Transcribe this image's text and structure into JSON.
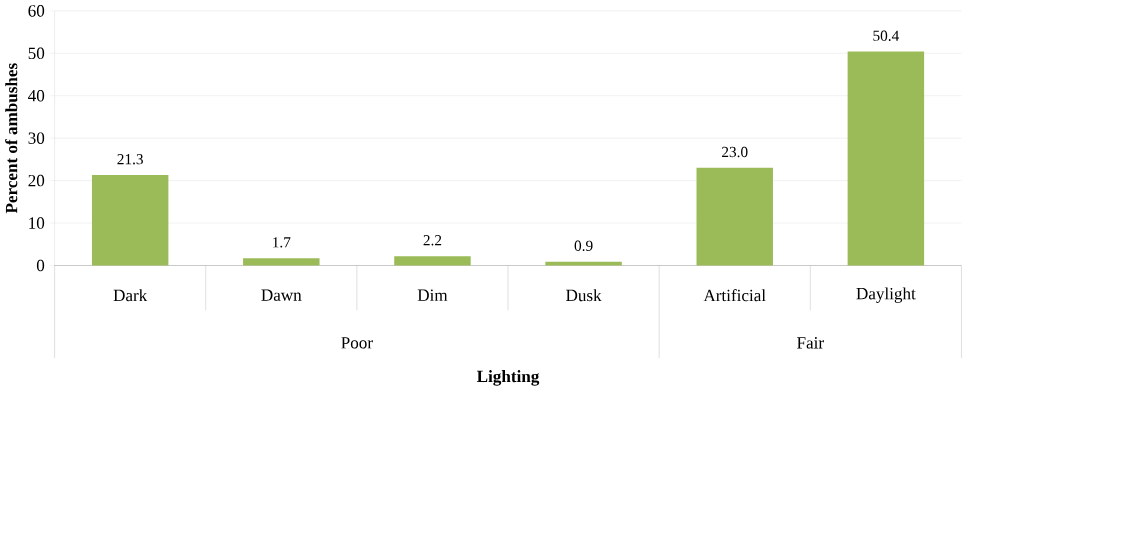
{
  "chart_data": {
    "type": "bar",
    "xlabel": "Lighting",
    "ylabel": "Percent of ambushes",
    "categories": [
      "Dark",
      "Dawn",
      "Dim",
      "Dusk",
      "Artificial",
      "Daylight"
    ],
    "values": [
      21.3,
      1.7,
      2.2,
      0.9,
      23.0,
      50.4
    ],
    "value_labels": [
      "21.3",
      "1.7",
      "2.2",
      "0.9",
      "23.0",
      "50.4"
    ],
    "color": "#9bbb59",
    "ylim": [
      0,
      60
    ],
    "yticks": [
      0,
      10,
      20,
      30,
      40,
      50,
      60
    ],
    "grid": "y",
    "annotations": [
      "Poor",
      "Fair"
    ]
  }
}
